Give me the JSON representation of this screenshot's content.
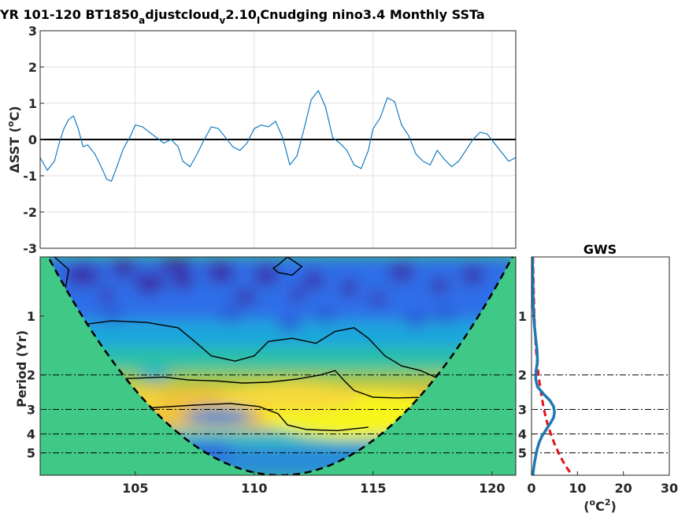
{
  "colors": {
    "series": "#0072bd",
    "mask": "#3fc886",
    "red_dash": "#e0141b",
    "gws_line": "#1f77b4",
    "wavelet_low": "#3a2ea8",
    "wavelet_high": "#f6f51d"
  },
  "chart_data": [
    {
      "type": "line",
      "title_parts": [
        "YR 101-120 BT1850",
        "a",
        "djustcloud",
        "v",
        "2.10",
        "I",
        "Cnudging nino3.4 Monthly SSTa"
      ],
      "ylabel": "ΔSST (°C)",
      "ylabel_parts": [
        "ΔSST (",
        "o",
        "C)"
      ],
      "xlim": [
        101,
        121
      ],
      "ylim": [
        -3,
        3
      ],
      "yticks": [
        "-3",
        "-2",
        "-1",
        "0",
        "1",
        "2",
        "3"
      ],
      "grid": true,
      "zero_line": true,
      "series": [
        {
          "x": [
            101.0,
            101.3,
            101.6,
            101.8,
            102.0,
            102.2,
            102.4,
            102.6,
            102.8,
            103.0,
            103.3,
            103.6,
            103.8,
            104.0,
            104.2,
            104.5,
            104.8,
            105.0,
            105.3,
            105.6,
            105.9,
            106.2,
            106.5,
            106.8,
            107.0,
            107.3,
            107.6,
            107.9,
            108.2,
            108.5,
            108.8,
            109.1,
            109.4,
            109.7,
            110.0,
            110.3,
            110.6,
            110.9,
            111.2,
            111.5,
            111.8,
            112.1,
            112.4,
            112.7,
            113.0,
            113.3,
            113.6,
            113.9,
            114.2,
            114.5,
            114.8,
            115.0,
            115.3,
            115.6,
            115.9,
            116.2,
            116.5,
            116.8,
            117.1,
            117.4,
            117.7,
            118.0,
            118.3,
            118.6,
            118.9,
            119.2,
            119.5,
            119.8,
            120.1,
            120.4,
            120.7,
            121.0
          ],
          "y": [
            -0.5,
            -0.85,
            -0.6,
            -0.1,
            0.3,
            0.55,
            0.65,
            0.3,
            -0.2,
            -0.15,
            -0.4,
            -0.8,
            -1.1,
            -1.15,
            -0.8,
            -0.25,
            0.1,
            0.4,
            0.35,
            0.2,
            0.05,
            -0.1,
            0.0,
            -0.2,
            -0.6,
            -0.75,
            -0.4,
            0.0,
            0.35,
            0.3,
            0.05,
            -0.2,
            -0.3,
            -0.1,
            0.3,
            0.4,
            0.35,
            0.5,
            0.05,
            -0.7,
            -0.45,
            0.3,
            1.1,
            1.35,
            0.9,
            0.05,
            -0.1,
            -0.3,
            -0.7,
            -0.8,
            -0.3,
            0.3,
            0.6,
            1.15,
            1.05,
            0.4,
            0.1,
            -0.4,
            -0.6,
            -0.7,
            -0.3,
            -0.55,
            -0.75,
            -0.6,
            -0.3,
            0.0,
            0.2,
            0.15,
            -0.1,
            -0.35,
            -0.6,
            -0.5
          ]
        }
      ]
    },
    {
      "type": "heatmap",
      "ylabel": "Period (Yr)",
      "xlim": [
        101,
        121
      ],
      "xticks": [
        "105",
        "110",
        "115",
        "120"
      ],
      "yticks": [
        "1",
        "2",
        "3",
        "4",
        "5"
      ],
      "y_scale": "log2",
      "ylim_period": [
        0.5,
        6.5
      ],
      "reference_periods": [
        2,
        3,
        4,
        5
      ],
      "cone_of_influence": true,
      "high_power_band": [
        2.2,
        3.8
      ]
    },
    {
      "type": "line",
      "title": "GWS",
      "xlabel_parts": [
        "(",
        "o",
        "C",
        "2",
        ")"
      ],
      "xlim": [
        0,
        30
      ],
      "xticks": [
        "0",
        "10",
        "20",
        "30"
      ],
      "yticks": [
        "1",
        "2",
        "3",
        "4",
        "5"
      ],
      "reference_periods": [
        2,
        3,
        4,
        5
      ],
      "series": [
        {
          "style": "solid",
          "period": [
            0.5,
            0.7,
            0.9,
            1.1,
            1.3,
            1.5,
            1.7,
            1.9,
            2.1,
            2.3,
            2.5,
            2.7,
            2.9,
            3.1,
            3.3,
            3.5,
            3.8,
            4.1,
            4.4,
            4.8,
            5.2,
            5.7,
            6.2,
            6.5
          ],
          "power": [
            0.2,
            0.3,
            0.4,
            0.6,
            0.9,
            1.2,
            1.3,
            1.0,
            0.9,
            1.3,
            2.6,
            4.0,
            4.8,
            5.0,
            4.8,
            4.2,
            3.2,
            2.3,
            1.7,
            1.2,
            0.9,
            0.6,
            0.4,
            0.3
          ]
        },
        {
          "style": "dashed",
          "period": [
            0.5,
            1.0,
            1.5,
            2.0,
            2.5,
            3.0,
            3.5,
            4.0,
            4.5,
            5.0,
            5.5,
            6.0,
            6.5
          ],
          "power": [
            0.3,
            0.6,
            1.0,
            1.5,
            2.1,
            2.7,
            3.4,
            4.2,
            5.0,
            5.9,
            6.8,
            7.8,
            8.8
          ]
        }
      ]
    }
  ]
}
